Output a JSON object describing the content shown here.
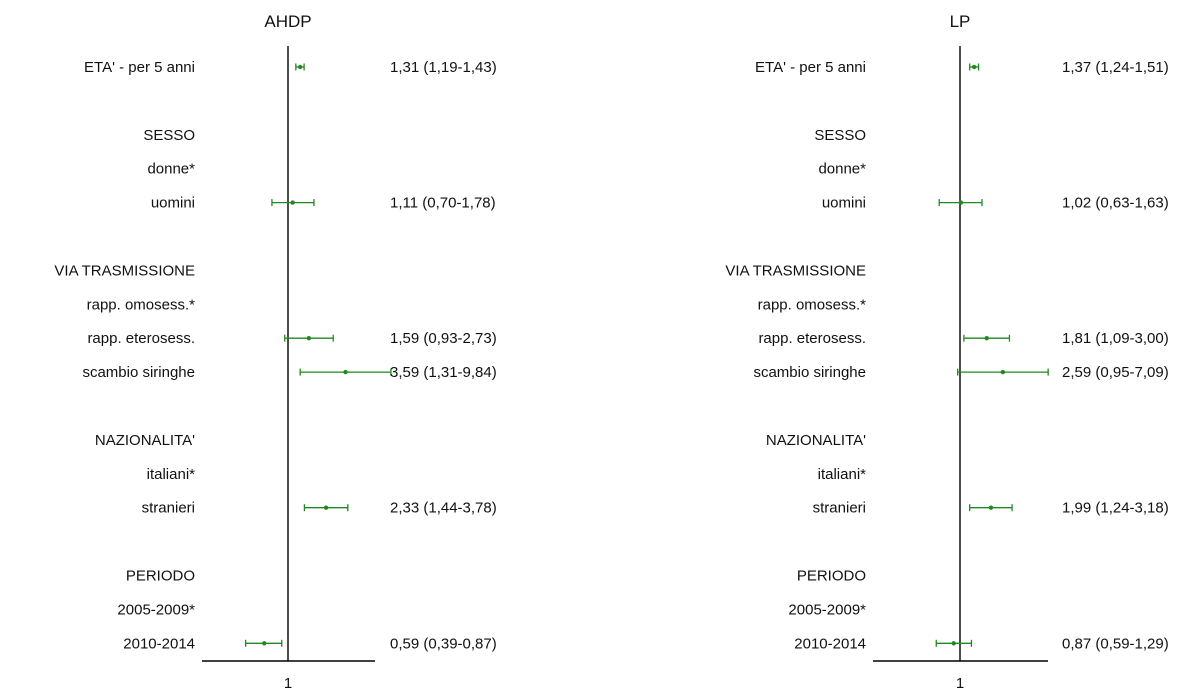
{
  "chart_data": [
    {
      "type": "forest",
      "title": "AHDP",
      "reference_line": 1,
      "xtick_label": "1",
      "rows": [
        {
          "label": "ETA' - per 5 anni",
          "estimate": 1.31,
          "low": 1.19,
          "high": 1.43,
          "ci_text": "1,31 (1,19-1,43)"
        },
        {
          "label": ""
        },
        {
          "label": "SESSO"
        },
        {
          "label": "donne*"
        },
        {
          "label": "uomini",
          "estimate": 1.11,
          "low": 0.7,
          "high": 1.78,
          "ci_text": "1,11 (0,70-1,78)"
        },
        {
          "label": ""
        },
        {
          "label": "VIA TRASMISSIONE"
        },
        {
          "label": "rapp. omosess.*"
        },
        {
          "label": "rapp. eterosess.",
          "estimate": 1.59,
          "low": 0.93,
          "high": 2.73,
          "ci_text": "1,59 (0,93-2,73)"
        },
        {
          "label": "scambio siringhe",
          "estimate": 3.59,
          "low": 1.31,
          "high": 9.84,
          "ci_text": "3,59 (1,31-9,84)"
        },
        {
          "label": ""
        },
        {
          "label": "NAZIONALITA'"
        },
        {
          "label": "italiani*"
        },
        {
          "label": "stranieri",
          "estimate": 2.33,
          "low": 1.44,
          "high": 3.78,
          "ci_text": "2,33 (1,44-3,78)"
        },
        {
          "label": ""
        },
        {
          "label": "PERIODO"
        },
        {
          "label": "2005-2009*"
        },
        {
          "label": "2010-2014",
          "estimate": 0.59,
          "low": 0.39,
          "high": 0.87,
          "ci_text": "0,59 (0,39-0,87)"
        }
      ]
    },
    {
      "type": "forest",
      "title": "LP",
      "reference_line": 1,
      "xtick_label": "1",
      "rows": [
        {
          "label": "ETA' - per 5 anni",
          "estimate": 1.37,
          "low": 1.24,
          "high": 1.51,
          "ci_text": "1,37 (1,24-1,51)"
        },
        {
          "label": ""
        },
        {
          "label": "SESSO"
        },
        {
          "label": "donne*"
        },
        {
          "label": "uomini",
          "estimate": 1.02,
          "low": 0.63,
          "high": 1.63,
          "ci_text": "1,02 (0,63-1,63)"
        },
        {
          "label": ""
        },
        {
          "label": "VIA TRASMISSIONE"
        },
        {
          "label": "rapp. omosess.*"
        },
        {
          "label": "rapp. eterosess.",
          "estimate": 1.81,
          "low": 1.09,
          "high": 3.0,
          "ci_text": "1,81 (1,09-3,00)"
        },
        {
          "label": "scambio siringhe",
          "estimate": 2.59,
          "low": 0.95,
          "high": 7.09,
          "ci_text": "2,59 (0,95-7,09)"
        },
        {
          "label": ""
        },
        {
          "label": "NAZIONALITA'"
        },
        {
          "label": "italiani*"
        },
        {
          "label": "stranieri",
          "estimate": 1.99,
          "low": 1.24,
          "high": 3.18,
          "ci_text": "1,99 (1,24-3,18)"
        },
        {
          "label": ""
        },
        {
          "label": "PERIODO"
        },
        {
          "label": "2005-2009*"
        },
        {
          "label": "2010-2014",
          "estimate": 0.87,
          "low": 0.59,
          "high": 1.29,
          "ci_text": "0,87 (0,59-1,29)"
        }
      ]
    }
  ],
  "colors": {
    "marker": "#1f8a1f",
    "axis": "#000000",
    "text": "#111111"
  }
}
